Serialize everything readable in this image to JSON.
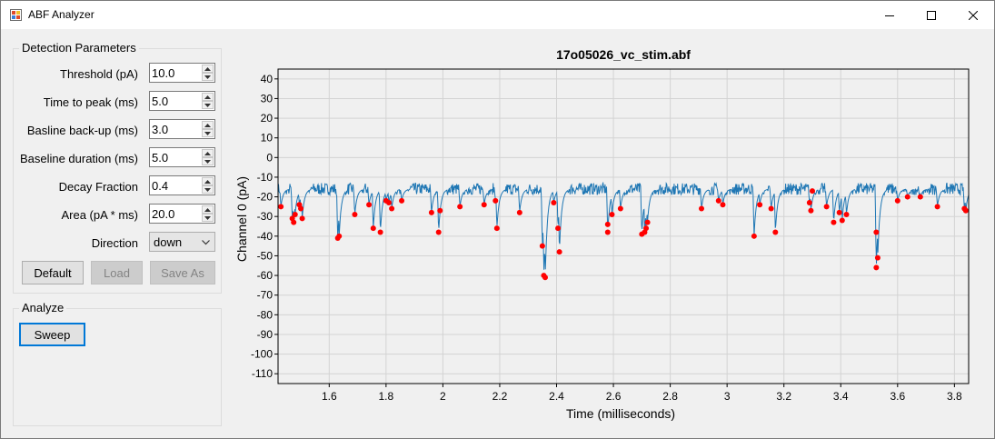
{
  "window": {
    "title": "ABF Analyzer",
    "icon": "abf-app-icon",
    "controls": {
      "minimize": "minimize-icon",
      "maximize": "maximize-icon",
      "close": "close-icon"
    }
  },
  "detection": {
    "group_title": "Detection Parameters",
    "params": [
      {
        "label": "Threshold (pA)",
        "value": "10.0"
      },
      {
        "label": "Time to peak (ms)",
        "value": "5.0"
      },
      {
        "label": "Basline back-up (ms)",
        "value": "3.0"
      },
      {
        "label": "Baseline duration (ms)",
        "value": "5.0"
      },
      {
        "label": "Decay Fraction",
        "value": "0.4"
      },
      {
        "label": "Area (pA * ms)",
        "value": "20.0"
      }
    ],
    "direction": {
      "label": "Direction",
      "value": "down"
    },
    "buttons": {
      "default": "Default",
      "load": "Load",
      "save_as": "Save As"
    }
  },
  "analyze": {
    "group_title": "Analyze",
    "sweep_button": "Sweep"
  },
  "chart_data": {
    "type": "line",
    "title": "17o05026_vc_stim.abf",
    "xlabel": "Time (milliseconds)",
    "ylabel": "Channel 0 (pA)",
    "xlim": [
      1.42,
      3.85
    ],
    "ylim": [
      -115,
      45
    ],
    "x_ticks": [
      "1.6",
      "1.8",
      "2",
      "2.2",
      "2.4",
      "2.6",
      "2.8",
      "3",
      "3.2",
      "3.4",
      "3.6",
      "3.8"
    ],
    "y_ticks": [
      "40",
      "30",
      "20",
      "10",
      "0",
      "-10",
      "-20",
      "-30",
      "-40",
      "-50",
      "-60",
      "-70",
      "-80",
      "-90",
      "-100",
      "-110"
    ],
    "grid": true,
    "series": [
      {
        "type": "line",
        "color": "#1f77b4",
        "baseline": -16
      },
      {
        "type": "scatter",
        "color": "#ff0000",
        "points": [
          [
            1.43,
            -25
          ],
          [
            1.47,
            -31
          ],
          [
            1.475,
            -33
          ],
          [
            1.48,
            -29
          ],
          [
            1.495,
            -24
          ],
          [
            1.5,
            -26
          ],
          [
            1.505,
            -31
          ],
          [
            1.63,
            -41
          ],
          [
            1.635,
            -40
          ],
          [
            1.69,
            -29
          ],
          [
            1.74,
            -24
          ],
          [
            1.755,
            -36
          ],
          [
            1.78,
            -38
          ],
          [
            1.8,
            -22
          ],
          [
            1.81,
            -23
          ],
          [
            1.82,
            -26
          ],
          [
            1.855,
            -22
          ],
          [
            1.96,
            -28
          ],
          [
            1.985,
            -38
          ],
          [
            1.99,
            -27
          ],
          [
            2.06,
            -25
          ],
          [
            2.145,
            -24
          ],
          [
            2.185,
            -22
          ],
          [
            2.19,
            -36
          ],
          [
            2.27,
            -28
          ],
          [
            2.35,
            -45
          ],
          [
            2.355,
            -60
          ],
          [
            2.36,
            -61
          ],
          [
            2.39,
            -23
          ],
          [
            2.405,
            -36
          ],
          [
            2.41,
            -48
          ],
          [
            2.58,
            -34
          ],
          [
            2.58,
            -38
          ],
          [
            2.595,
            -29
          ],
          [
            2.625,
            -26
          ],
          [
            2.7,
            -39
          ],
          [
            2.71,
            -38
          ],
          [
            2.715,
            -36
          ],
          [
            2.72,
            -33
          ],
          [
            2.91,
            -26
          ],
          [
            2.97,
            -22
          ],
          [
            2.985,
            -24
          ],
          [
            3.095,
            -40
          ],
          [
            3.115,
            -24
          ],
          [
            3.155,
            -26
          ],
          [
            3.17,
            -38
          ],
          [
            3.29,
            -23
          ],
          [
            3.295,
            -27
          ],
          [
            3.3,
            -17
          ],
          [
            3.35,
            -25
          ],
          [
            3.375,
            -33
          ],
          [
            3.395,
            -28
          ],
          [
            3.405,
            -32
          ],
          [
            3.42,
            -29
          ],
          [
            3.525,
            -38
          ],
          [
            3.53,
            -51
          ],
          [
            3.525,
            -56
          ],
          [
            3.6,
            -22
          ],
          [
            3.635,
            -20
          ],
          [
            3.68,
            -20
          ],
          [
            3.74,
            -25
          ],
          [
            3.835,
            -26
          ],
          [
            3.84,
            -27
          ]
        ]
      }
    ]
  }
}
